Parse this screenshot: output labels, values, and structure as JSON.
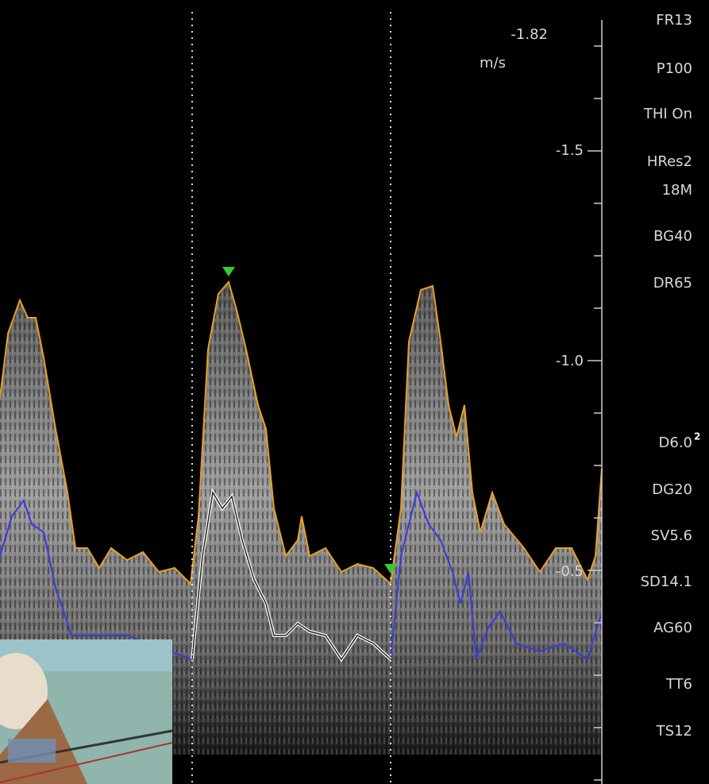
{
  "scale": {
    "max": "-1.82",
    "unit": "m/s",
    "ticks": [
      "-1.5",
      "-1.0",
      "-0.5"
    ]
  },
  "parameters": [
    "FR13",
    "P100",
    "THI On",
    "HRes2",
    "18M",
    "BG40",
    "DR65",
    "D6.0",
    "DG20",
    "SV5.6",
    "SD14.1",
    "AG60",
    "TT6",
    "TS12"
  ],
  "depth_superscript": "2"
}
